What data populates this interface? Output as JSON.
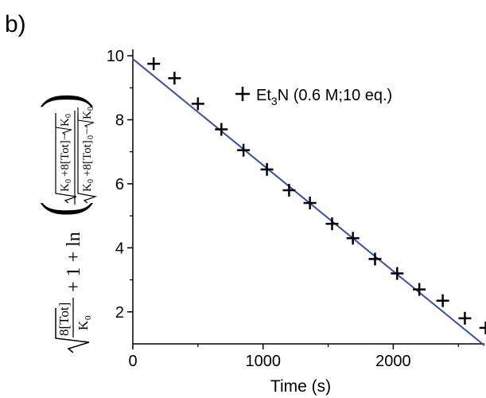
{
  "panel_label": "b)",
  "chart_data": {
    "type": "scatter",
    "xlabel": "Time (s)",
    "ylabel": "√(8[Tot]/K0) + 1 + ln((√(K0+8[Tot]) − √K0)/(√(K0+8[Tot]0) − √K0))",
    "xlim": [
      0,
      2700
    ],
    "ylim": [
      1,
      10.2
    ],
    "x_ticks": [
      0,
      1000,
      2000
    ],
    "y_ticks": [
      2,
      4,
      6,
      8,
      10
    ],
    "legend_position": "top-right",
    "grid": false,
    "series": [
      {
        "name": "Et3N (0.6 M;10 eq.)",
        "marker": "plus",
        "color": "#000000",
        "x": [
          160,
          320,
          500,
          680,
          850,
          1030,
          1200,
          1360,
          1530,
          1690,
          1860,
          2030,
          2200,
          2380,
          2550,
          2710
        ],
        "y": [
          9.75,
          9.3,
          8.5,
          7.7,
          7.05,
          6.45,
          5.8,
          5.4,
          4.75,
          4.3,
          3.65,
          3.2,
          2.7,
          2.35,
          1.8,
          1.5
        ]
      }
    ],
    "fit_line": {
      "color": "#3a4fa3",
      "x": [
        0,
        2700
      ],
      "y": [
        9.9,
        0.95
      ]
    }
  }
}
